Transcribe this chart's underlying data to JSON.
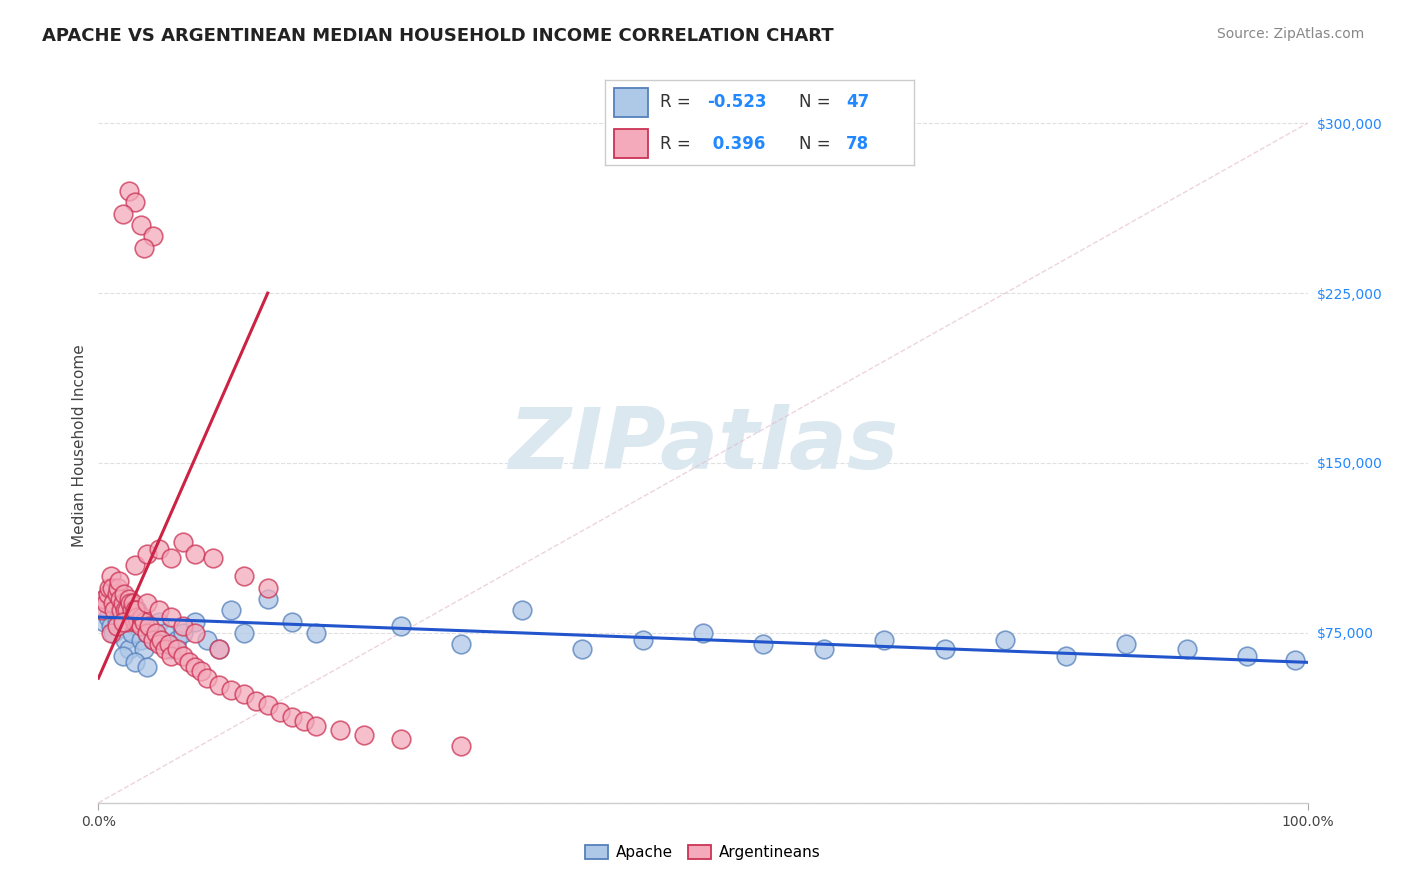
{
  "title": "APACHE VS ARGENTINEAN MEDIAN HOUSEHOLD INCOME CORRELATION CHART",
  "source": "Source: ZipAtlas.com",
  "ylabel": "Median Household Income",
  "yticks": [
    0,
    75000,
    150000,
    225000,
    300000
  ],
  "ytick_labels": [
    "",
    "$75,000",
    "$150,000",
    "$225,000",
    "$300,000"
  ],
  "xlim": [
    0.0,
    100.0
  ],
  "ylim": [
    0,
    315000
  ],
  "apache_color": "#aec8e8",
  "apache_edge": "#5580bb",
  "argentinean_color": "#f4aabb",
  "argentinean_edge": "#cc3355",
  "trendline_blue": "#2255cc",
  "trendline_pink": "#cc2244",
  "grid_color": "#e0e0e0",
  "background_color": "#ffffff",
  "watermark_color": "#dce8f0",
  "title_fontsize": 13,
  "axis_label_fontsize": 11,
  "tick_fontsize": 10,
  "legend_fontsize": 13,
  "source_fontsize": 10,
  "apache_x": [
    0.5,
    0.8,
    1.0,
    1.2,
    1.5,
    1.8,
    2.0,
    2.2,
    2.5,
    2.8,
    3.0,
    3.2,
    3.5,
    3.8,
    4.0,
    4.5,
    5.0,
    5.5,
    6.0,
    6.5,
    7.0,
    8.0,
    9.0,
    10.0,
    11.0,
    12.0,
    14.0,
    16.0,
    18.0,
    25.0,
    30.0,
    35.0,
    40.0,
    45.0,
    50.0,
    55.0,
    60.0,
    65.0,
    70.0,
    75.0,
    80.0,
    85.0,
    90.0,
    95.0,
    99.0,
    2.0,
    3.0,
    4.0
  ],
  "apache_y": [
    80000,
    82000,
    78000,
    75000,
    80000,
    85000,
    77000,
    72000,
    68000,
    75000,
    80000,
    85000,
    72000,
    68000,
    75000,
    72000,
    80000,
    75000,
    68000,
    72000,
    75000,
    80000,
    72000,
    68000,
    85000,
    75000,
    90000,
    80000,
    75000,
    78000,
    70000,
    85000,
    68000,
    72000,
    75000,
    70000,
    68000,
    72000,
    68000,
    72000,
    65000,
    70000,
    68000,
    65000,
    63000,
    65000,
    62000,
    60000
  ],
  "arg_x": [
    0.3,
    0.5,
    0.6,
    0.8,
    0.9,
    1.0,
    1.1,
    1.2,
    1.3,
    1.5,
    1.6,
    1.7,
    1.8,
    1.9,
    2.0,
    2.1,
    2.2,
    2.3,
    2.4,
    2.5,
    2.6,
    2.7,
    2.8,
    2.9,
    3.0,
    3.1,
    3.2,
    3.3,
    3.5,
    3.6,
    3.8,
    4.0,
    4.2,
    4.5,
    4.8,
    5.0,
    5.2,
    5.5,
    5.8,
    6.0,
    6.5,
    7.0,
    7.5,
    8.0,
    8.5,
    9.0,
    10.0,
    11.0,
    12.0,
    13.0,
    14.0,
    15.0,
    16.0,
    17.0,
    18.0,
    20.0,
    22.0,
    25.0,
    30.0,
    1.0,
    1.5,
    2.0,
    3.0,
    4.0,
    5.0,
    6.0,
    7.0,
    8.0,
    10.0,
    3.0,
    4.0,
    5.0,
    6.0,
    7.0,
    8.0,
    9.5,
    12.0,
    14.0
  ],
  "arg_y": [
    85000,
    90000,
    88000,
    92000,
    95000,
    100000,
    95000,
    88000,
    85000,
    92000,
    95000,
    98000,
    90000,
    85000,
    88000,
    92000,
    85000,
    80000,
    85000,
    90000,
    88000,
    82000,
    85000,
    88000,
    80000,
    85000,
    82000,
    80000,
    78000,
    82000,
    80000,
    75000,
    78000,
    72000,
    75000,
    70000,
    72000,
    68000,
    70000,
    65000,
    68000,
    65000,
    62000,
    60000,
    58000,
    55000,
    52000,
    50000,
    48000,
    45000,
    43000,
    40000,
    38000,
    36000,
    34000,
    32000,
    30000,
    28000,
    25000,
    75000,
    78000,
    80000,
    85000,
    88000,
    85000,
    82000,
    78000,
    75000,
    68000,
    105000,
    110000,
    112000,
    108000,
    115000,
    110000,
    108000,
    100000,
    95000
  ],
  "arg_x_high": [
    2.5,
    3.0,
    3.5,
    4.5,
    2.0,
    3.8
  ],
  "arg_y_high": [
    270000,
    265000,
    255000,
    250000,
    260000,
    245000
  ],
  "apache_trend": [
    0.0,
    100.0,
    82000,
    62000
  ],
  "arg_trend": [
    0.0,
    14.0,
    55000,
    225000
  ]
}
